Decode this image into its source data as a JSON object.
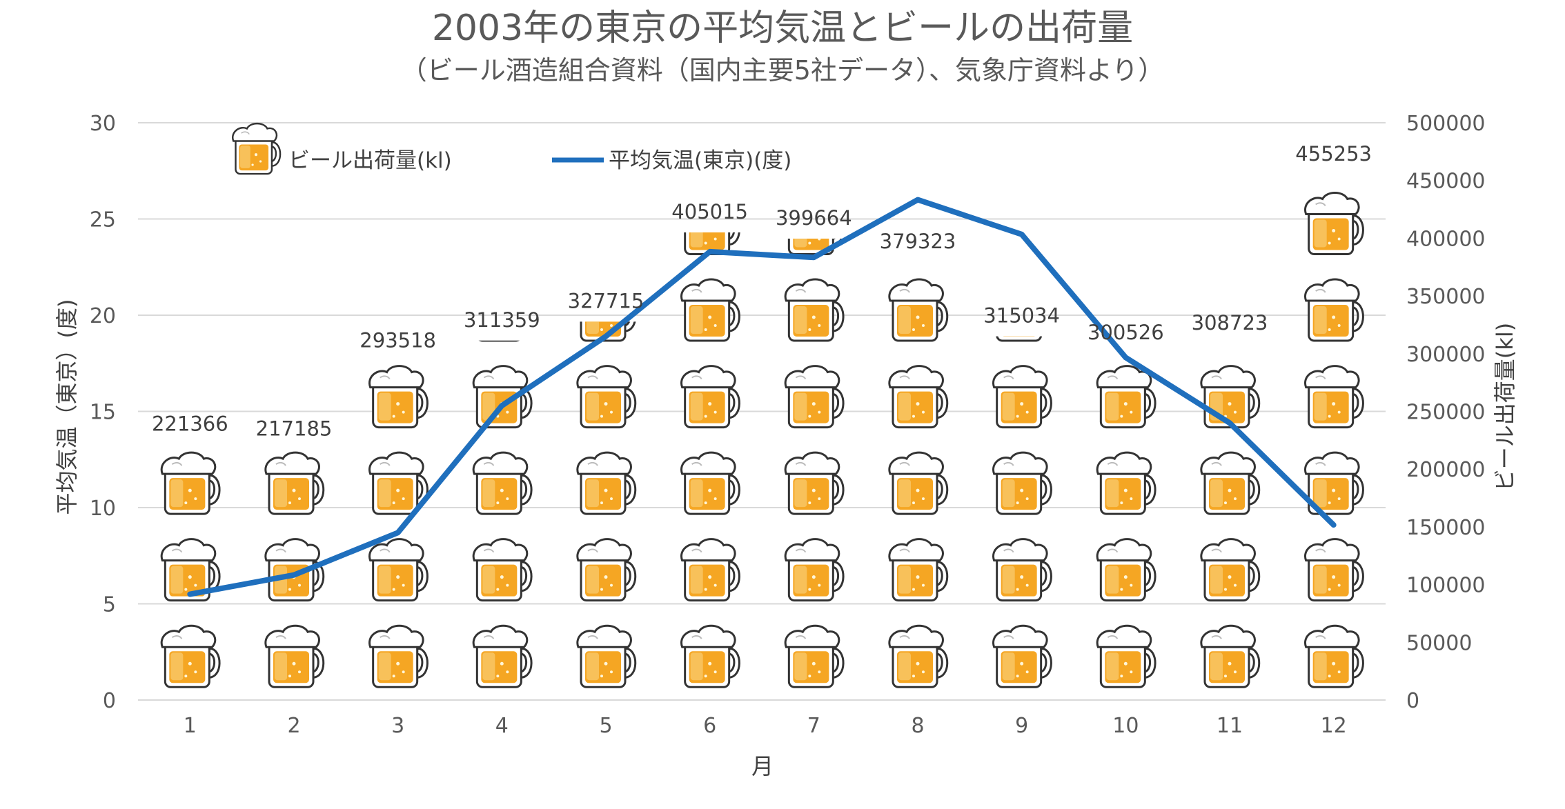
{
  "chart_data": {
    "type": "bar",
    "title": "2003年の東京の平均気温とビールの出荷量",
    "subtitle": "（ビール酒造組合資料（国内主要5社データ）、気象庁資料より）",
    "xlabel": "月",
    "ylabel_left": "平均気温（東京）(度)",
    "ylabel_right": "ビール出荷量(kl)",
    "categories": [
      "1",
      "2",
      "3",
      "4",
      "5",
      "6",
      "7",
      "8",
      "9",
      "10",
      "11",
      "12"
    ],
    "series": [
      {
        "name": "ビール出荷量(kl)",
        "kind": "pictograph-bar",
        "axis": "right",
        "icon": "beer-mug-icon",
        "values": [
          221366,
          217185,
          293518,
          311359,
          327715,
          405015,
          399664,
          379323,
          315034,
          300526,
          308723,
          455253
        ],
        "labels": [
          "221366",
          "217185",
          "293518",
          "311359",
          "327715",
          "405015",
          "399664",
          "379323",
          "315034",
          "300526",
          "308723",
          "455253"
        ]
      },
      {
        "name": "平均気温(東京)(度)",
        "kind": "line",
        "axis": "left",
        "color": "#1f6fbd",
        "values": [
          5.5,
          6.5,
          8.7,
          15.3,
          18.9,
          23.3,
          23.0,
          26.0,
          24.2,
          17.8,
          14.4,
          9.1
        ]
      }
    ],
    "left_axis": {
      "ylim": [
        0,
        30
      ],
      "ticks": [
        "0",
        "5",
        "10",
        "15",
        "20",
        "25",
        "30"
      ]
    },
    "right_axis": {
      "ylim": [
        0,
        500000
      ],
      "ticks": [
        "0",
        "50000",
        "100000",
        "150000",
        "200000",
        "250000",
        "300000",
        "350000",
        "400000",
        "450000",
        "500000"
      ]
    },
    "pictograph_unit": 75000,
    "grid": true,
    "legend_position": "top",
    "colors": {
      "text": "#595959",
      "grid": "#d9d9d9",
      "line": "#1f6fbd",
      "beer": "#f5a623",
      "foam": "#ffffff"
    }
  }
}
